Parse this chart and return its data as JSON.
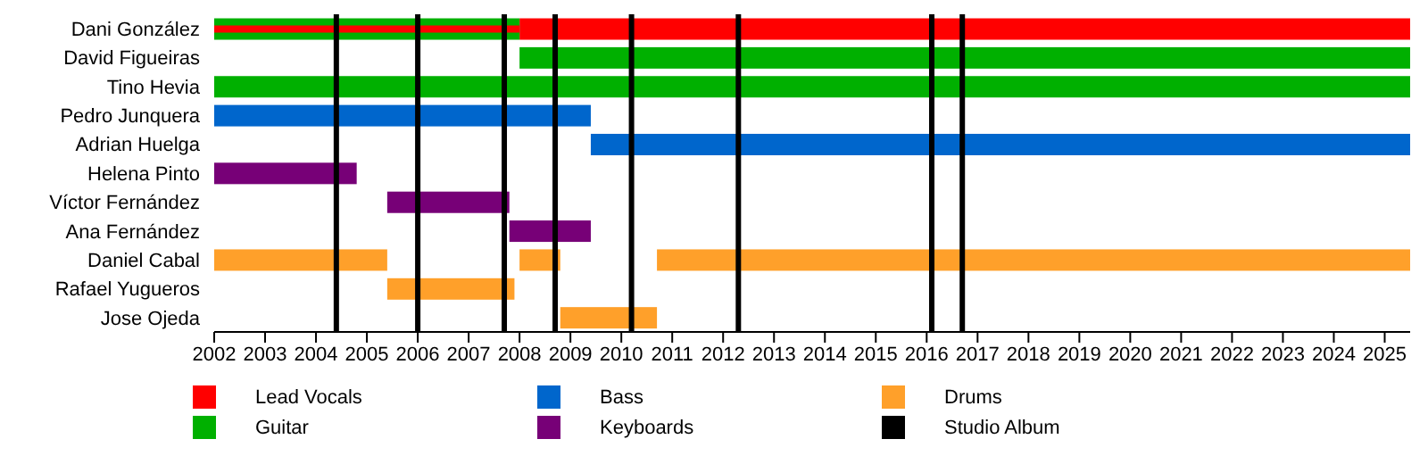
{
  "chart_data": {
    "type": "bar",
    "orientation": "horizontal",
    "categories": [
      "Dani González",
      "David Figueiras",
      "Tino Hevia",
      "Pedro Junquera",
      "Adrian Huelga",
      "Helena Pinto",
      "Víctor Fernández",
      "Ana Fernández",
      "Daniel Cabal",
      "Rafael Yugueros",
      "Jose Ojeda"
    ],
    "series": [
      {
        "name": "Lead Vocals",
        "color": "#ff0000",
        "base": [
          2002,
          null,
          null,
          null,
          null,
          null,
          null,
          null,
          null,
          null,
          null
        ],
        "values": [
          6.0,
          null,
          null,
          null,
          null,
          null,
          null,
          null,
          null,
          null,
          null
        ]
      },
      {
        "name": "Guitar",
        "color": "#00b000",
        "base": [
          2002,
          2008.0,
          2002,
          null,
          null,
          null,
          null,
          null,
          null,
          null,
          null
        ],
        "values": [
          6.0,
          17.5,
          23.5,
          null,
          null,
          null,
          null,
          null,
          null,
          null,
          null
        ]
      },
      {
        "name": "Bass",
        "color": "#0066cc",
        "base": [
          null,
          null,
          null,
          2002,
          2009.4,
          null,
          null,
          null,
          null,
          null,
          null
        ],
        "values": [
          null,
          null,
          null,
          7.4,
          16.1,
          null,
          null,
          null,
          null,
          null,
          null
        ]
      },
      {
        "name": "Keyboards",
        "color": "#770077",
        "base": [
          null,
          null,
          null,
          null,
          null,
          2002,
          2005.4,
          2007.8,
          null,
          null,
          null
        ],
        "values": [
          null,
          null,
          null,
          null,
          null,
          2.8,
          2.4,
          1.6,
          null,
          null,
          null
        ]
      },
      {
        "name": "Drums",
        "color": "#ffa02a",
        "base": [
          null,
          null,
          null,
          null,
          null,
          null,
          null,
          null,
          2002,
          2005.4,
          2008.8
        ],
        "values": [
          null,
          null,
          null,
          null,
          null,
          null,
          null,
          null,
          3.4,
          2.5,
          1.9
        ]
      },
      {
        "color": "#ffa02a",
        "base": [
          null,
          null,
          null,
          null,
          null,
          null,
          null,
          null,
          2008.0,
          null,
          null
        ],
        "values": [
          null,
          null,
          null,
          null,
          null,
          null,
          null,
          null,
          0.8,
          null,
          null
        ]
      },
      {
        "color": "#ffa02a",
        "base": [
          null,
          null,
          null,
          null,
          null,
          null,
          null,
          null,
          2010.7,
          null,
          null
        ],
        "values": [
          null,
          null,
          null,
          null,
          null,
          null,
          null,
          null,
          14.8,
          null,
          null
        ]
      },
      {
        "color": "#ff0000",
        "base": [
          2008.0,
          null,
          null,
          null,
          null,
          null,
          null,
          null,
          null,
          null,
          null
        ],
        "values": [
          17.5,
          null,
          null,
          null,
          null,
          null,
          null,
          null,
          null,
          null,
          null
        ]
      }
    ],
    "ref_lines": [
      {
        "axis": "x",
        "value": 2004.4,
        "label": "Studio Album",
        "color": "#000000"
      },
      {
        "axis": "x",
        "value": 2006.0,
        "color": "#000000"
      },
      {
        "axis": "x",
        "value": 2007.7,
        "color": "#000000"
      },
      {
        "axis": "x",
        "value": 2008.7,
        "color": "#000000"
      },
      {
        "axis": "x",
        "value": 2010.2,
        "color": "#000000"
      },
      {
        "axis": "x",
        "value": 2012.3,
        "color": "#000000"
      },
      {
        "axis": "x",
        "value": 2016.1,
        "color": "#000000"
      },
      {
        "axis": "x",
        "value": 2016.7,
        "color": "#000000"
      }
    ],
    "xlim": [
      2002,
      2025.5
    ],
    "xticks": [
      2002,
      2003,
      2004,
      2005,
      2006,
      2007,
      2008,
      2009,
      2010,
      2011,
      2012,
      2013,
      2014,
      2015,
      2016,
      2017,
      2018,
      2019,
      2020,
      2021,
      2022,
      2023,
      2024,
      2025
    ],
    "legend": "bottom"
  }
}
